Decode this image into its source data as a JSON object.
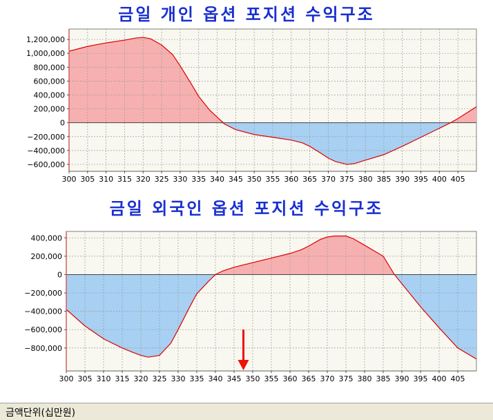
{
  "footer": {
    "unit_label": "금액단위(십만원)"
  },
  "chart_data": [
    {
      "type": "area",
      "title": "금일 개인 옵션 포지션 수익구조",
      "xlabel": "",
      "ylabel": "",
      "xlim": [
        300,
        410
      ],
      "ylim": [
        -700000,
        1350000
      ],
      "x_ticks": [
        300,
        305,
        310,
        315,
        320,
        325,
        330,
        335,
        340,
        345,
        350,
        355,
        360,
        365,
        370,
        375,
        380,
        385,
        390,
        395,
        400,
        405
      ],
      "y_ticks": [
        1200000,
        1000000,
        800000,
        600000,
        400000,
        200000,
        0,
        -200000,
        -400000,
        -600000
      ],
      "grid": true,
      "positive_color": "#f7b0b0",
      "negative_color": "#a8d0f2",
      "line_color": "#dd0000",
      "x": [
        300,
        305,
        310,
        315,
        318,
        320,
        322,
        325,
        328,
        330,
        333,
        335,
        338,
        340,
        342,
        345,
        350,
        355,
        360,
        363,
        365,
        368,
        370,
        372,
        375,
        377,
        380,
        385,
        390,
        395,
        400,
        403,
        405,
        410
      ],
      "y": [
        1030000,
        1100000,
        1150000,
        1190000,
        1220000,
        1230000,
        1210000,
        1120000,
        980000,
        820000,
        560000,
        380000,
        180000,
        80000,
        -20000,
        -100000,
        -170000,
        -210000,
        -250000,
        -290000,
        -340000,
        -440000,
        -510000,
        -560000,
        -600000,
        -590000,
        -540000,
        -460000,
        -340000,
        -210000,
        -80000,
        0,
        60000,
        230000
      ]
    },
    {
      "type": "area",
      "title": "금일 외국인 옵션 포지션 수익구조",
      "xlabel": "",
      "ylabel": "",
      "xlim": [
        300,
        410
      ],
      "ylim": [
        -1050000,
        470000
      ],
      "x_ticks": [
        300,
        305,
        310,
        315,
        320,
        325,
        330,
        335,
        340,
        345,
        350,
        355,
        360,
        365,
        370,
        375,
        380,
        385,
        390,
        395,
        400,
        405
      ],
      "y_ticks": [
        400000,
        200000,
        0,
        -200000,
        -400000,
        -600000,
        -800000
      ],
      "grid": true,
      "positive_color": "#f7b0b0",
      "negative_color": "#a8d0f2",
      "line_color": "#dd0000",
      "marker_arrow_x": 347.5,
      "marker_arrow_color": "#ee1100",
      "x": [
        300,
        305,
        310,
        315,
        318,
        320,
        322,
        325,
        328,
        330,
        333,
        335,
        338,
        340,
        342,
        345,
        350,
        355,
        360,
        363,
        365,
        368,
        370,
        372,
        375,
        377,
        380,
        385,
        388,
        390,
        395,
        400,
        405,
        410
      ],
      "y": [
        -380000,
        -560000,
        -700000,
        -800000,
        -850000,
        -880000,
        -900000,
        -880000,
        -750000,
        -600000,
        -360000,
        -210000,
        -80000,
        0,
        40000,
        80000,
        130000,
        180000,
        230000,
        270000,
        310000,
        380000,
        410000,
        420000,
        420000,
        390000,
        320000,
        200000,
        0,
        -100000,
        -350000,
        -580000,
        -800000,
        -920000
      ]
    }
  ]
}
